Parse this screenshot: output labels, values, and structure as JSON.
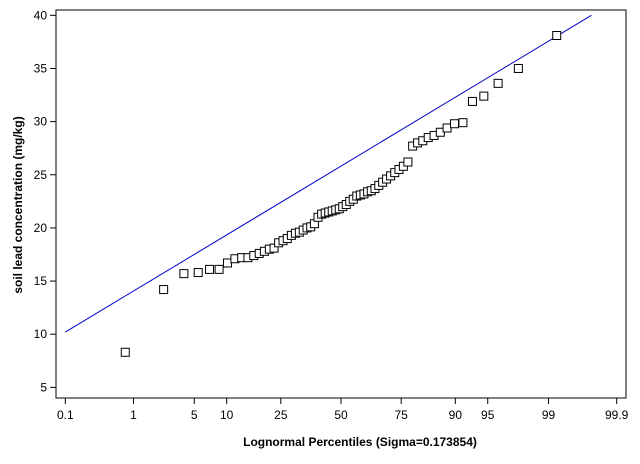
{
  "chart_data": {
    "type": "scatter",
    "title": "",
    "xlabel": "Lognormal Percentiles (Sigma=0.173854)",
    "ylabel": "soil lead concentration (mg/kg)",
    "x_scale": "normal-probability",
    "x_ticks": [
      0.1,
      1,
      5,
      10,
      25,
      50,
      75,
      90,
      95,
      99,
      99.9
    ],
    "x_tick_labels": [
      "0.1",
      "1",
      "5",
      "10",
      "25",
      "50",
      "75",
      "90",
      "95",
      "99",
      "99.9"
    ],
    "xlim": [
      0.07,
      99.93
    ],
    "ylim": [
      4,
      40.5
    ],
    "y_ticks": [
      5,
      10,
      15,
      20,
      25,
      30,
      35,
      40
    ],
    "y_tick_labels": [
      "5",
      "10",
      "15",
      "20",
      "25",
      "30",
      "35",
      "40"
    ],
    "grid": false,
    "legend": "none",
    "colors": {
      "points": "#000000",
      "fit_line": "#0000cc",
      "frame": "#000000"
    },
    "fit_line": {
      "x": [
        0.1,
        99.75
      ],
      "y": [
        10.2,
        40.0
      ]
    },
    "series": [
      {
        "marker": "open-square",
        "x": [
          0.78,
          2.34,
          3.91,
          5.47,
          7.03,
          8.59,
          10.16,
          11.72,
          13.28,
          14.84,
          16.41,
          17.97,
          19.53,
          21.09,
          22.66,
          24.22,
          25.78,
          27.34,
          28.91,
          30.47,
          32.03,
          33.59,
          35.16,
          36.72,
          38.28,
          39.84,
          41.41,
          42.97,
          44.53,
          46.09,
          47.66,
          49.22,
          50.78,
          52.34,
          53.91,
          55.47,
          57.03,
          58.59,
          60.16,
          61.72,
          63.28,
          64.84,
          66.41,
          67.97,
          69.53,
          71.09,
          72.66,
          74.22,
          75.78,
          77.34,
          78.91,
          80.47,
          82.03,
          83.59,
          85.16,
          86.72,
          88.28,
          89.84,
          91.41,
          92.97,
          94.53,
          96.09,
          97.66,
          99.22
        ],
        "y": [
          8.3,
          14.2,
          15.7,
          15.8,
          16.1,
          16.1,
          16.7,
          17.1,
          17.2,
          17.2,
          17.4,
          17.6,
          17.8,
          18.0,
          18.1,
          18.6,
          18.8,
          19.0,
          19.3,
          19.5,
          19.6,
          19.8,
          20.0,
          20.1,
          20.4,
          21.0,
          21.3,
          21.4,
          21.5,
          21.6,
          21.7,
          21.8,
          22.0,
          22.2,
          22.5,
          22.7,
          23.0,
          23.1,
          23.2,
          23.4,
          23.5,
          23.7,
          24.0,
          24.3,
          24.6,
          24.9,
          25.2,
          25.5,
          25.8,
          26.2,
          27.7,
          28.0,
          28.2,
          28.5,
          28.7,
          29.0,
          29.4,
          29.8,
          29.9,
          31.9,
          32.4,
          33.6,
          35.0,
          38.1
        ]
      }
    ]
  }
}
